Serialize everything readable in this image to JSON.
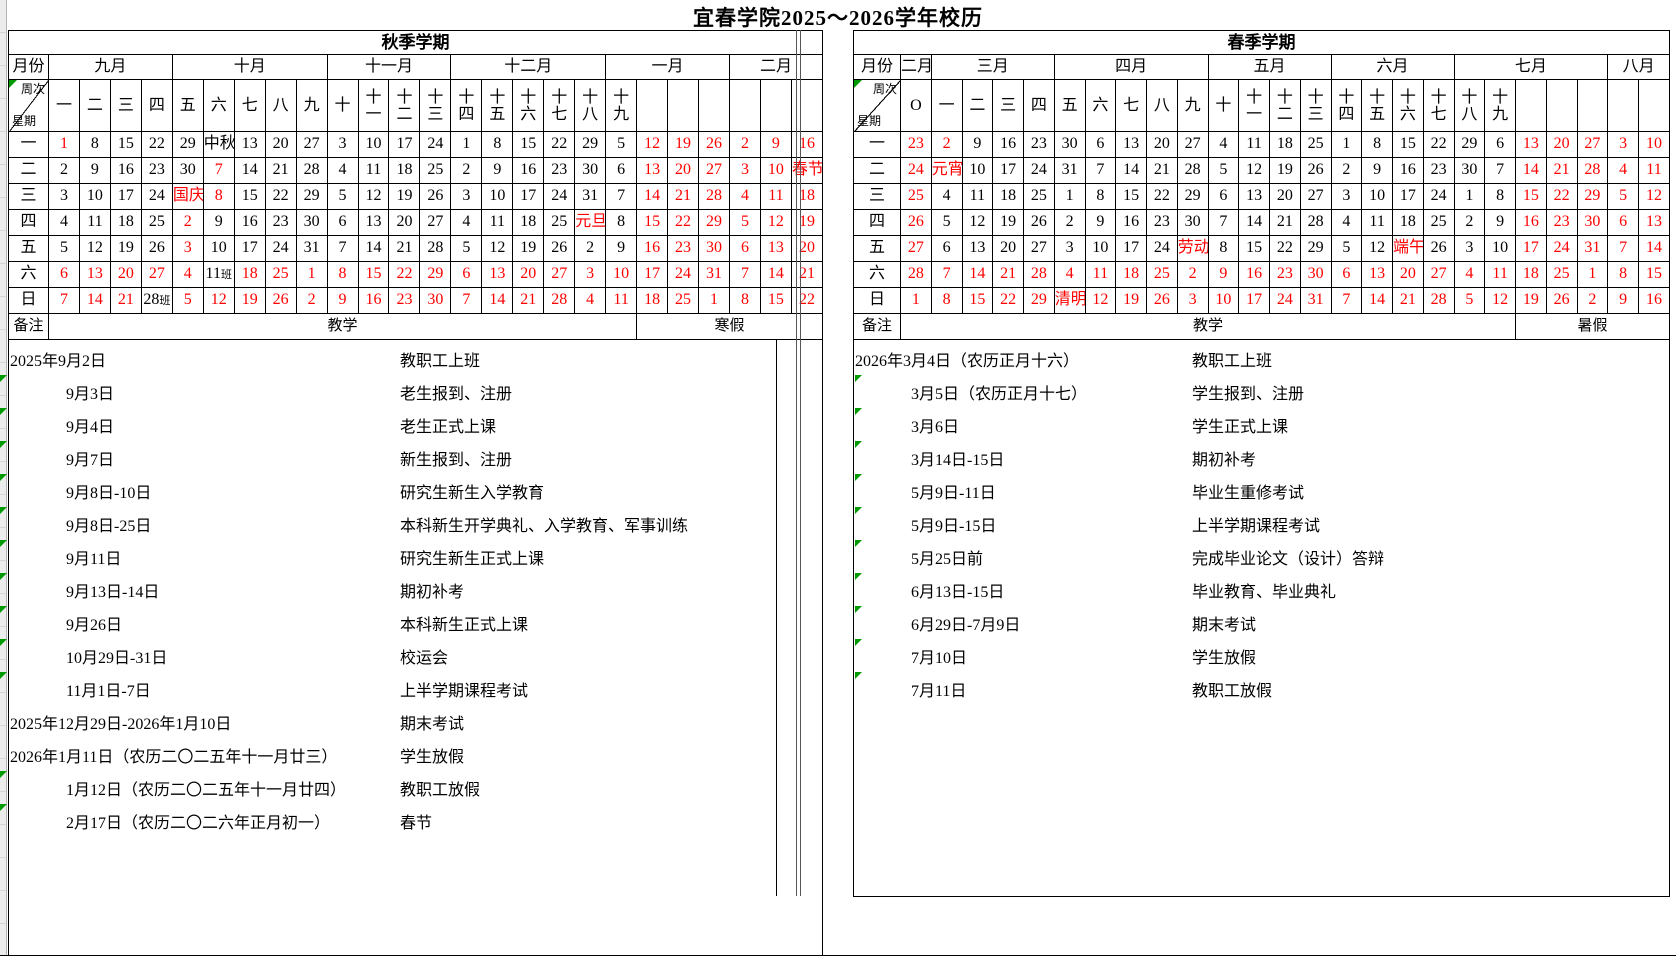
{
  "title": "宜春学院2025～2026学年校历",
  "colors": {
    "holiday_red": "#ff0000",
    "comment_marker_green": "#009900",
    "grid_black": "#000000",
    "gutter_gray": "#ececec"
  },
  "cell_legend": "date cell strings ending with * are rendered red (weekend / holiday / vacation); suffix 班 marks a make-up work day",
  "panels": [
    {
      "semester": "秋季学期",
      "corner_month_label": "月份",
      "corner_week_label": "周次",
      "corner_weekday_label": "星期",
      "remark_label": "备注",
      "months": [
        {
          "label": "九月",
          "span": 4
        },
        {
          "label": "十月",
          "span": 5
        },
        {
          "label": "十一月",
          "span": 4
        },
        {
          "label": "十二月",
          "span": 5
        },
        {
          "label": "一月",
          "span": 4
        },
        {
          "label": "二月",
          "span": 3
        }
      ],
      "weeks": [
        "一",
        "二",
        "三",
        "四",
        "五",
        "六",
        "七",
        "八",
        "九",
        "十",
        "十一",
        "十二",
        "十三",
        "十四",
        "十五",
        "十六",
        "十七",
        "十八",
        "十九",
        "",
        "",
        "",
        "",
        "",
        ""
      ],
      "day_rows": [
        {
          "label": "一",
          "cells": [
            "1*",
            "8",
            "15",
            "22",
            "29",
            "中秋",
            "13",
            "20",
            "27",
            "3",
            "10",
            "17",
            "24",
            "1",
            "8",
            "15",
            "22",
            "29",
            "5",
            "12*",
            "19*",
            "26*",
            "2*",
            "9*",
            "16*"
          ]
        },
        {
          "label": "二",
          "cells": [
            "2",
            "9",
            "16",
            "23",
            "30",
            "7*",
            "14",
            "21",
            "28",
            "4",
            "11",
            "18",
            "25",
            "2",
            "9",
            "16",
            "23",
            "30",
            "6",
            "13*",
            "20*",
            "27*",
            "3*",
            "10*",
            "春节*"
          ]
        },
        {
          "label": "三",
          "cells": [
            "3",
            "10",
            "17",
            "24",
            "国庆*",
            "8*",
            "15",
            "22",
            "29",
            "5",
            "12",
            "19",
            "26",
            "3",
            "10",
            "17",
            "24",
            "31",
            "7",
            "14*",
            "21*",
            "28*",
            "4*",
            "11*",
            "18*"
          ]
        },
        {
          "label": "四",
          "cells": [
            "4",
            "11",
            "18",
            "25",
            "2*",
            "9",
            "16",
            "23",
            "30",
            "6",
            "13",
            "20",
            "27",
            "4",
            "11",
            "18",
            "25",
            "元旦*",
            "8",
            "15*",
            "22*",
            "29*",
            "5*",
            "12*",
            "19*"
          ]
        },
        {
          "label": "五",
          "cells": [
            "5",
            "12",
            "19",
            "26",
            "3*",
            "10",
            "17",
            "24",
            "31",
            "7",
            "14",
            "21",
            "28",
            "5",
            "12",
            "19",
            "26",
            "2",
            "9",
            "16*",
            "23*",
            "30*",
            "6*",
            "13*",
            "20*"
          ]
        },
        {
          "label": "六",
          "cells": [
            "6*",
            "13*",
            "20*",
            "27*",
            "4*",
            "11班",
            "18*",
            "25*",
            "1*",
            "8*",
            "15*",
            "22*",
            "29*",
            "6*",
            "13*",
            "20*",
            "27*",
            "3*",
            "10*",
            "17*",
            "24*",
            "31*",
            "7*",
            "14*",
            "21*"
          ]
        },
        {
          "label": "日",
          "cells": [
            "7*",
            "14*",
            "21*",
            "28班",
            "5*",
            "12*",
            "19*",
            "26*",
            "2*",
            "9*",
            "16*",
            "23*",
            "30*",
            "7*",
            "14*",
            "21*",
            "28*",
            "4*",
            "11*",
            "18*",
            "25*",
            "1*",
            "8*",
            "15*",
            "22*"
          ]
        }
      ],
      "remark_sections": [
        {
          "label": "教学",
          "span": 19
        },
        {
          "label": "寒假",
          "span": 6
        }
      ],
      "notes": [
        {
          "date": "2025年9月2日",
          "event": "教职工上班",
          "indent": false,
          "marker": false
        },
        {
          "date": "9月3日",
          "event": "老生报到、注册",
          "indent": true,
          "marker": true
        },
        {
          "date": "9月4日",
          "event": "老生正式上课",
          "indent": true,
          "marker": true
        },
        {
          "date": "9月7日",
          "event": "新生报到、注册",
          "indent": true,
          "marker": true
        },
        {
          "date": "9月8日-10日",
          "event": "研究生新生入学教育",
          "indent": true,
          "marker": true
        },
        {
          "date": "9月8日-25日",
          "event": "本科新生开学典礼、入学教育、军事训练",
          "indent": true,
          "marker": true
        },
        {
          "date": "9月11日",
          "event": "研究生新生正式上课",
          "indent": true,
          "marker": true
        },
        {
          "date": "9月13日-14日",
          "event": "期初补考",
          "indent": true,
          "marker": true
        },
        {
          "date": "9月26日",
          "event": "本科新生正式上课",
          "indent": true,
          "marker": true
        },
        {
          "date": "10月29日-31日",
          "event": "校运会",
          "indent": true,
          "marker": true
        },
        {
          "date": "11月1日-7日",
          "event": "上半学期课程考试",
          "indent": true,
          "marker": true
        },
        {
          "date": "2025年12月29日-2026年1月10日",
          "event": "期末考试",
          "indent": false,
          "marker": false
        },
        {
          "date": "2026年1月11日（农历二〇二五年十一月廿三）",
          "event": "学生放假",
          "indent": false,
          "marker": false
        },
        {
          "date": "1月12日（农历二〇二五年十一月廿四）",
          "event": "教职工放假",
          "indent": true,
          "marker": true
        },
        {
          "date": "2月17日（农历二〇二六年正月初一）",
          "event": "春节",
          "indent": true,
          "marker": true
        }
      ]
    },
    {
      "semester": "春季学期",
      "corner_month_label": "月份",
      "corner_week_label": "周次",
      "corner_weekday_label": "星期",
      "remark_label": "备注",
      "months": [
        {
          "label": "二月",
          "span": 1
        },
        {
          "label": "三月",
          "span": 4
        },
        {
          "label": "四月",
          "span": 5
        },
        {
          "label": "五月",
          "span": 4
        },
        {
          "label": "六月",
          "span": 4
        },
        {
          "label": "七月",
          "span": 5
        },
        {
          "label": "八月",
          "span": 2
        }
      ],
      "weeks": [
        "O",
        "一",
        "二",
        "三",
        "四",
        "五",
        "六",
        "七",
        "八",
        "九",
        "十",
        "十一",
        "十二",
        "十三",
        "十四",
        "十五",
        "十六",
        "十七",
        "十八",
        "十九",
        "",
        "",
        "",
        "",
        ""
      ],
      "day_rows": [
        {
          "label": "一",
          "cells": [
            "23*",
            "2*",
            "9",
            "16",
            "23",
            "30",
            "6",
            "13",
            "20",
            "27",
            "4",
            "11",
            "18",
            "25",
            "1",
            "8",
            "15",
            "22",
            "29",
            "6",
            "13*",
            "20*",
            "27*",
            "3*",
            "10*"
          ]
        },
        {
          "label": "二",
          "cells": [
            "24*",
            "元宵*",
            "10",
            "17",
            "24",
            "31",
            "7",
            "14",
            "21",
            "28",
            "5",
            "12",
            "19",
            "26",
            "2",
            "9",
            "16",
            "23",
            "30",
            "7",
            "14*",
            "21*",
            "28*",
            "4*",
            "11*"
          ]
        },
        {
          "label": "三",
          "cells": [
            "25*",
            "4",
            "11",
            "18",
            "25",
            "1",
            "8",
            "15",
            "22",
            "29",
            "6",
            "13",
            "20",
            "27",
            "3",
            "10",
            "17",
            "24",
            "1",
            "8",
            "15*",
            "22*",
            "29*",
            "5*",
            "12*"
          ]
        },
        {
          "label": "四",
          "cells": [
            "26*",
            "5",
            "12",
            "19",
            "26",
            "2",
            "9",
            "16",
            "23",
            "30",
            "7",
            "14",
            "21",
            "28",
            "4",
            "11",
            "18",
            "25",
            "2",
            "9",
            "16*",
            "23*",
            "30*",
            "6*",
            "13*"
          ]
        },
        {
          "label": "五",
          "cells": [
            "27*",
            "6",
            "13",
            "20",
            "27",
            "3",
            "10",
            "17",
            "24",
            "劳动*",
            "8",
            "15",
            "22",
            "29",
            "5",
            "12",
            "端午*",
            "26",
            "3",
            "10",
            "17*",
            "24*",
            "31*",
            "7*",
            "14*"
          ]
        },
        {
          "label": "六",
          "cells": [
            "28*",
            "7*",
            "14*",
            "21*",
            "28*",
            "4*",
            "11*",
            "18*",
            "25*",
            "2*",
            "9*",
            "16*",
            "23*",
            "30*",
            "6*",
            "13*",
            "20*",
            "27*",
            "4*",
            "11*",
            "18*",
            "25*",
            "1*",
            "8*",
            "15*"
          ]
        },
        {
          "label": "日",
          "cells": [
            "1*",
            "8*",
            "15*",
            "22*",
            "29*",
            "清明*",
            "12*",
            "19*",
            "26*",
            "3*",
            "10*",
            "17*",
            "24*",
            "31*",
            "7*",
            "14*",
            "21*",
            "28*",
            "5*",
            "12*",
            "19*",
            "26*",
            "2*",
            "9*",
            "16*"
          ]
        }
      ],
      "remark_sections": [
        {
          "label": "教学",
          "span": 20
        },
        {
          "label": "暑假",
          "span": 5
        }
      ],
      "notes": [
        {
          "date": "2026年3月4日（农历正月十六）",
          "event": "教职工上班",
          "indent": false,
          "marker": false
        },
        {
          "date": "3月5日（农历正月十七）",
          "event": "学生报到、注册",
          "indent": true,
          "marker": true
        },
        {
          "date": "3月6日",
          "event": "学生正式上课",
          "indent": true,
          "marker": true
        },
        {
          "date": "3月14日-15日",
          "event": "期初补考",
          "indent": true,
          "marker": true
        },
        {
          "date": "5月9日-11日",
          "event": "毕业生重修考试",
          "indent": true,
          "marker": true
        },
        {
          "date": "5月9日-15日",
          "event": "上半学期课程考试",
          "indent": true,
          "marker": true
        },
        {
          "date": "5月25日前",
          "event": "完成毕业论文（设计）答辩",
          "indent": true,
          "marker": true
        },
        {
          "date": "6月13日-15日",
          "event": "毕业教育、毕业典礼",
          "indent": true,
          "marker": true
        },
        {
          "date": "6月29日-7月9日",
          "event": "期末考试",
          "indent": true,
          "marker": true
        },
        {
          "date": "7月10日",
          "event": "学生放假",
          "indent": true,
          "marker": true
        },
        {
          "date": "7月11日",
          "event": "教职工放假",
          "indent": true,
          "marker": true
        }
      ]
    }
  ]
}
